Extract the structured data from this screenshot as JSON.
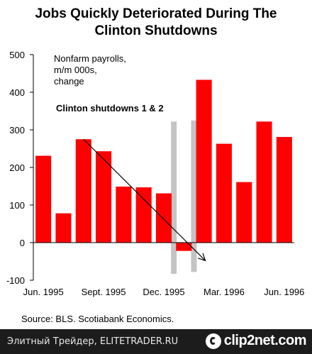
{
  "chart_data": {
    "type": "bar",
    "title": "Jobs Quickly Deteriorated During The Clinton Shutdowns",
    "title_lines": [
      "Jobs Quickly Deteriorated During The",
      "Clinton Shutdowns"
    ],
    "annotation_lines": [
      "Nonfarm payrolls,",
      "m/m 000s,",
      "change"
    ],
    "shutdown_label": "Clinton shutdowns 1 & 2",
    "source": "Source: BLS. Scotiabank Economics.",
    "ylim": [
      -100,
      500
    ],
    "y_ticks": [
      500,
      400,
      300,
      200,
      100,
      0,
      -100
    ],
    "x_tick_labels": [
      {
        "label": "Jun. 1995",
        "index": 0
      },
      {
        "label": "Sept. 1995",
        "index": 3
      },
      {
        "label": "Dec. 1995",
        "index": 6
      },
      {
        "label": "Mar. 1996",
        "index": 9
      },
      {
        "label": "Jun. 1996",
        "index": 12
      }
    ],
    "values": [
      231,
      78,
      275,
      243,
      149,
      147,
      131,
      -22,
      433,
      263,
      161,
      322,
      281
    ],
    "shutdown_periods": [
      {
        "from": 6.5,
        "to": 6.5,
        "top": 322,
        "bottom": -83
      },
      {
        "from": 7.5,
        "to": 7.5,
        "top": 325,
        "bottom": -78
      }
    ],
    "trend_arrow": {
      "start": [
        2,
        275
      ],
      "end": [
        8,
        -48
      ]
    },
    "colors": {
      "bar": "#ff0000",
      "shutdown_band": "#c4c4c4",
      "arrow": "#000000",
      "axis": "#000000"
    }
  },
  "footer": {
    "site_text": "Элитный Трейдер, ELITETRADER.RU",
    "logo_text": "clip2net.com",
    "logo_icon": "clip2net-logo-icon"
  }
}
